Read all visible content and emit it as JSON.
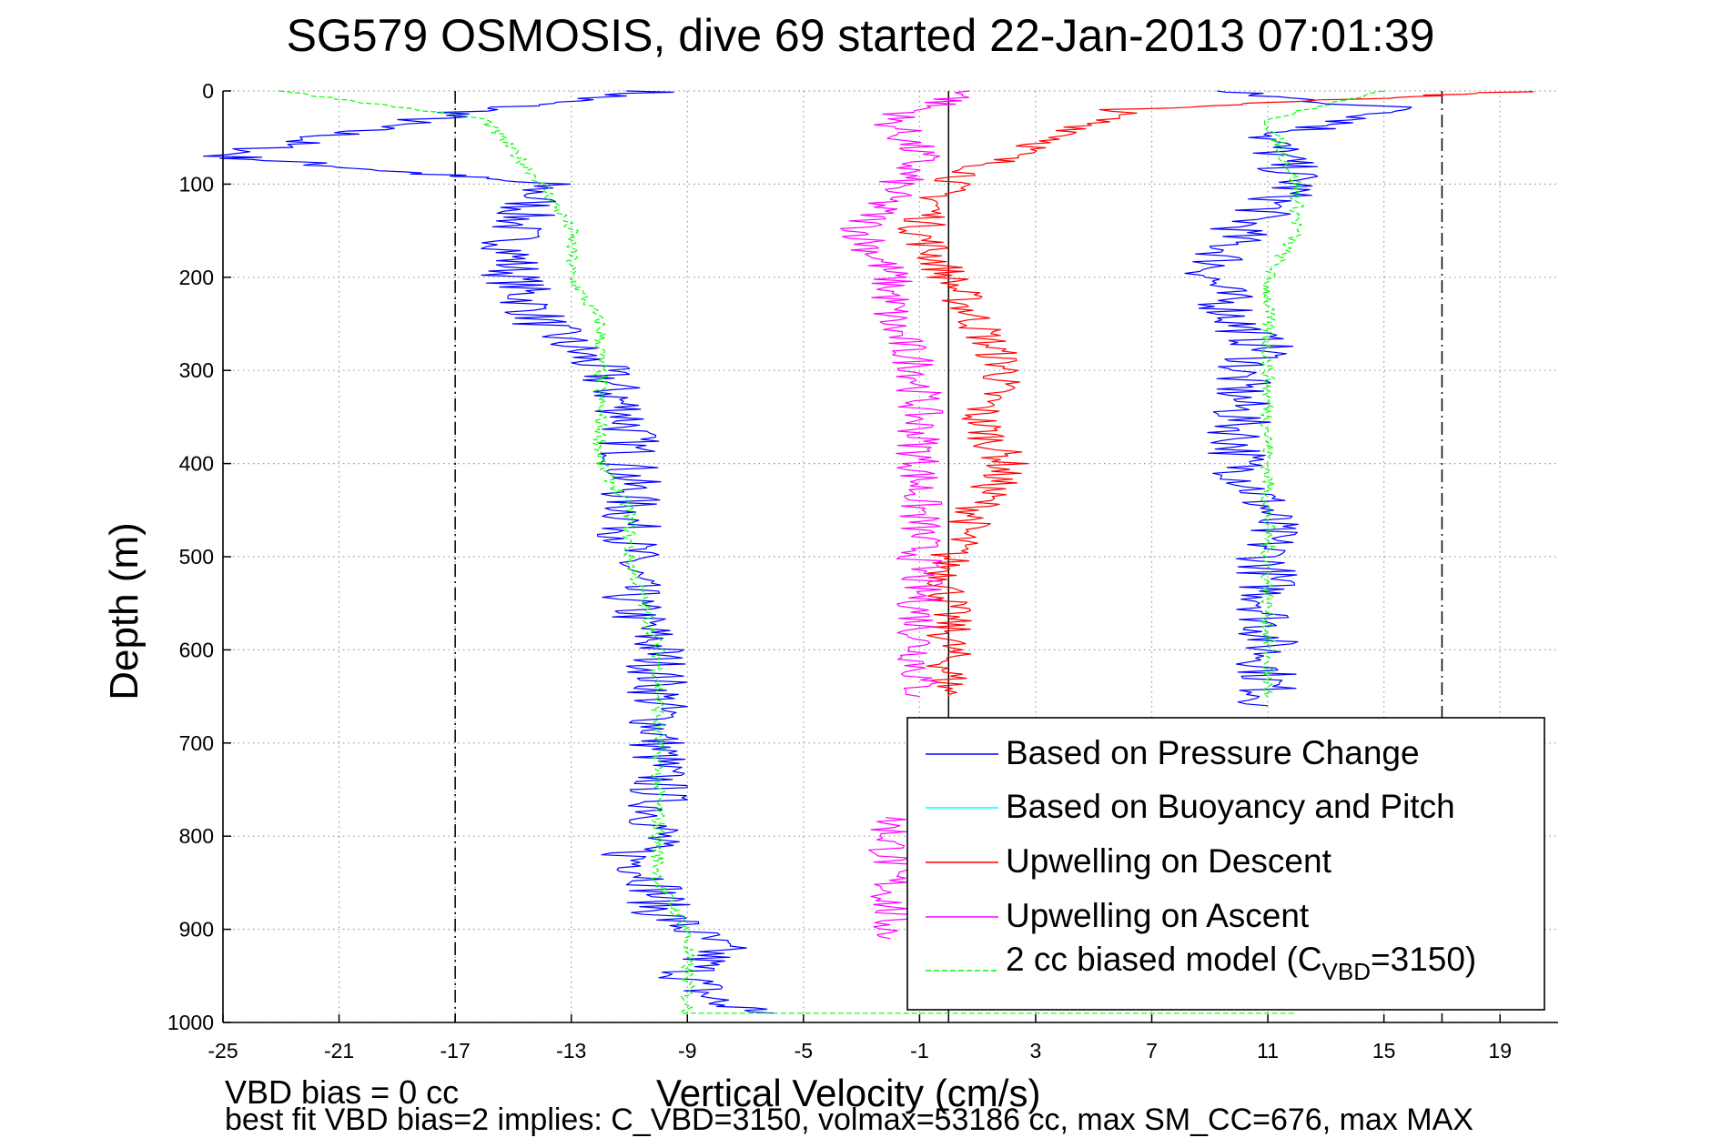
{
  "chart_data": {
    "type": "line",
    "title": "SG579 OSMOSIS, dive 69 started 22-Jan-2013 07:01:39",
    "xlabel": "Vertical Velocity (cm/s)",
    "ylabel": "Depth (m)",
    "xlim": [
      -25,
      21
    ],
    "ylim": [
      0,
      1000
    ],
    "y_reversed": true,
    "x_ticks": [
      "-25",
      "-21",
      "-17",
      "-13",
      "-9",
      "-5",
      "-1",
      "3",
      "7",
      "11",
      "15",
      "19"
    ],
    "y_ticks": [
      "0",
      "100",
      "200",
      "300",
      "400",
      "500",
      "600",
      "700",
      "800",
      "900",
      "1000"
    ],
    "grid": true,
    "reference_lines": [
      {
        "x": -17,
        "style": "dashdot",
        "color": "#000000"
      },
      {
        "x": 0,
        "style": "solid",
        "color": "#000000"
      },
      {
        "x": 17,
        "style": "dashdot",
        "color": "#000000"
      }
    ],
    "legend_position": "bottom-right",
    "series": [
      {
        "name": "Based on Pressure Change",
        "color": "#0000ff",
        "style": "solid",
        "segments": [
          {
            "x": [
              -10,
              -16,
              -20,
              -25,
              -14,
              -15,
              -15,
              -15,
              -14,
              -12,
              -11,
              -11,
              -11,
              -11,
              -11,
              -10,
              -10,
              -10,
              -10,
              -10,
              -11,
              -10,
              -10,
              -9,
              -8,
              -9,
              -8,
              -6
            ],
            "y": [
              0,
              20,
              40,
              70,
              100,
              150,
              180,
              200,
              250,
              300,
              350,
              400,
              450,
              500,
              550,
              600,
              650,
              700,
              750,
              800,
              820,
              850,
              880,
              900,
              920,
              950,
              980,
              990
            ]
          },
          {
            "x": [
              9,
              16,
              11,
              12,
              10,
              9,
              10,
              11,
              10,
              10,
              11,
              11,
              11,
              11,
              11,
              11
            ],
            "y": [
              0,
              20,
              50,
              100,
              150,
              200,
              250,
              280,
              300,
              400,
              450,
              500,
              550,
              600,
              650,
              660
            ]
          }
        ]
      },
      {
        "name": "Based on Buoyancy and Pitch",
        "color": "#00ffff",
        "style": "solid",
        "segments": []
      },
      {
        "name": "Upwelling on Descent",
        "color": "#ff0000",
        "style": "solid",
        "segments": [
          {
            "x": [
              20,
              6,
              4,
              2,
              0,
              -1,
              0,
              1,
              2,
              1,
              2,
              1,
              0,
              0,
              0
            ],
            "y": [
              0,
              20,
              50,
              70,
              100,
              150,
              200,
              250,
              300,
              350,
              400,
              450,
              500,
              600,
              650
            ]
          }
        ]
      },
      {
        "name": "Upwelling on Ascent",
        "color": "#ff00ff",
        "style": "solid",
        "segments": [
          {
            "x": [
              1,
              -2,
              -1,
              -3,
              -2,
              -2,
              -1,
              -1,
              -1,
              -1,
              -1,
              -1
            ],
            "y": [
              0,
              30,
              70,
              150,
              200,
              250,
              300,
              350,
              400,
              450,
              500,
              650
            ]
          },
          {
            "x": [
              -2,
              -2,
              -2,
              -2
            ],
            "y": [
              780,
              830,
              880,
              910
            ]
          }
        ]
      },
      {
        "name": "2 cc biased model (C_VBD=3150)",
        "color": "#00ff00",
        "style": "dashed",
        "segments": [
          {
            "x": [
              -23,
              -16,
              -14,
              -13,
              -13,
              -12,
              -12,
              -12,
              -12,
              -11,
              -11,
              -10,
              -10,
              -10,
              -10,
              -10,
              -9,
              -9,
              -9
            ],
            "y": [
              0,
              30,
              100,
              150,
              200,
              250,
              300,
              350,
              400,
              450,
              500,
              600,
              700,
              750,
              800,
              850,
              900,
              950,
              990
            ]
          },
          {
            "x": [
              -9,
              12
            ],
            "y": [
              990,
              990
            ]
          },
          {
            "x": [
              15,
              11,
              12,
              12,
              11,
              11,
              11,
              11,
              11,
              11,
              11,
              11
            ],
            "y": [
              0,
              30,
              100,
              150,
              200,
              250,
              300,
              350,
              400,
              450,
              500,
              650
            ]
          }
        ]
      }
    ],
    "legend": [
      {
        "text": "Based on Pressure Change",
        "color": "#0000ff",
        "style": "solid"
      },
      {
        "text": "Based on Buoyancy and Pitch",
        "color": "#00ffff",
        "style": "solid"
      },
      {
        "text": "Upwelling on Descent",
        "color": "#ff0000",
        "style": "solid"
      },
      {
        "text": "Upwelling on Ascent",
        "color": "#ff00ff",
        "style": "solid"
      },
      {
        "text_prefix": "2 cc biased model (C",
        "text_sub": "VBD",
        "text_suffix": "=3150)",
        "color": "#00ff00",
        "style": "dashed"
      }
    ],
    "footnotes": [
      "VBD bias = 0 cc",
      "best fit VBD bias=2 implies: C_VBD=3150, volmax=53186 cc, max SM_CC=676, max MAX"
    ]
  }
}
